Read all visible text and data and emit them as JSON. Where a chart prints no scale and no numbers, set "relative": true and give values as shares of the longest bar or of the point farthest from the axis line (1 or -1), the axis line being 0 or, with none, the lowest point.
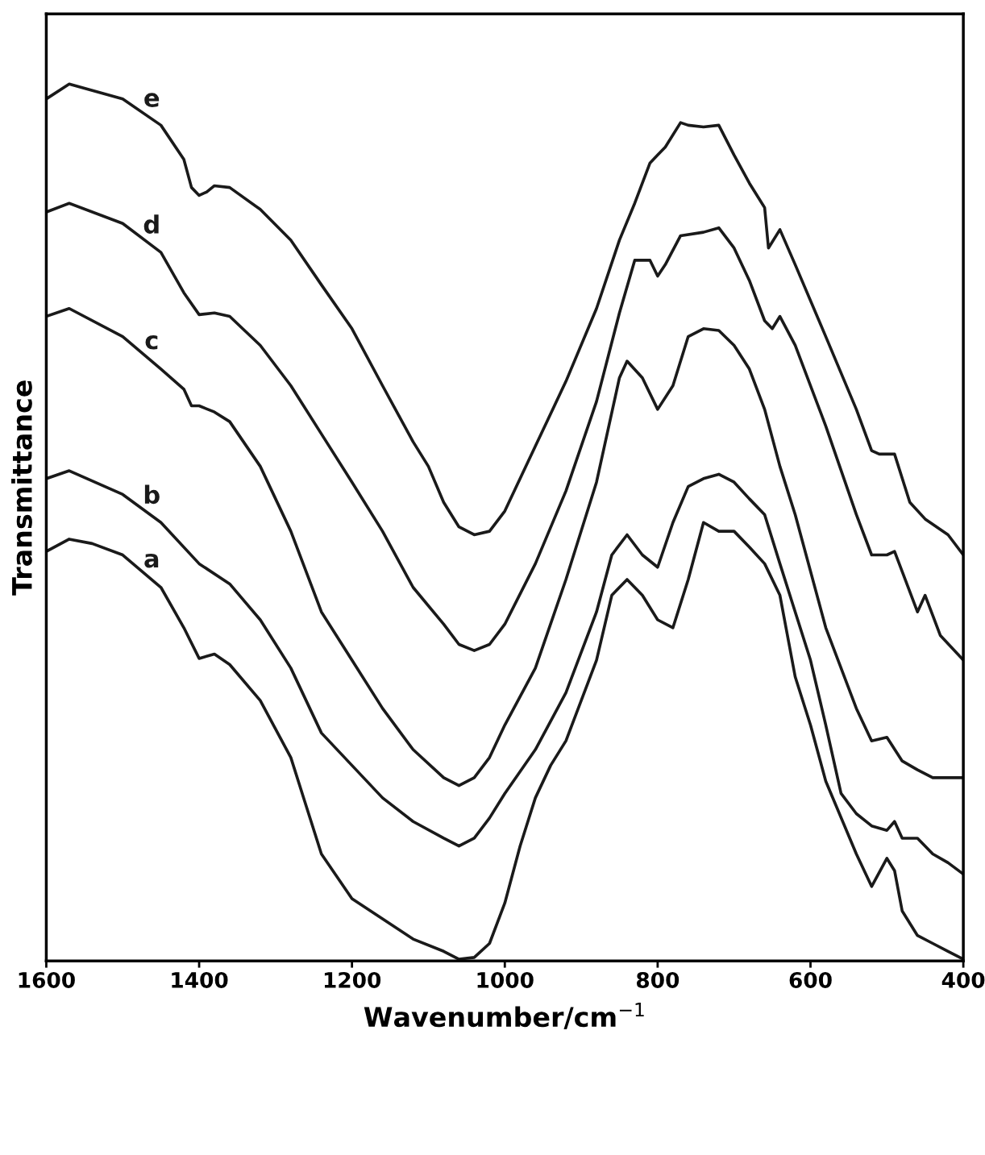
{
  "chart_data": {
    "type": "line",
    "relative": true,
    "xlabel": "Wavenumber/cm$^{−1}$",
    "ylabel": "Transmittance",
    "xlim": [
      1600,
      400
    ],
    "xticks": [
      1600,
      1400,
      1200,
      1000,
      800,
      600,
      400
    ],
    "grid": false,
    "legend": false,
    "marker": "none",
    "line_style": "solid",
    "tick_labels": "x",
    "series": [
      {
        "name": "e",
        "color": "#1a1a1a",
        "x": [
          1600,
          1570,
          1500,
          1450,
          1420,
          1410,
          1400,
          1390,
          1380,
          1360,
          1320,
          1280,
          1240,
          1200,
          1160,
          1120,
          1100,
          1080,
          1060,
          1040,
          1020,
          1000,
          960,
          920,
          880,
          850,
          830,
          810,
          800,
          790,
          770,
          760,
          740,
          720,
          700,
          680,
          660,
          655,
          640,
          620,
          580,
          540,
          520,
          510,
          490,
          470,
          450,
          420,
          400
        ],
        "values": [
          0.983,
          1.0,
          0.983,
          0.953,
          0.914,
          0.882,
          0.873,
          0.877,
          0.884,
          0.882,
          0.857,
          0.822,
          0.771,
          0.721,
          0.656,
          0.592,
          0.564,
          0.523,
          0.495,
          0.486,
          0.49,
          0.513,
          0.587,
          0.661,
          0.744,
          0.822,
          0.864,
          0.91,
          0.919,
          0.928,
          0.956,
          0.953,
          0.951,
          0.953,
          0.919,
          0.887,
          0.859,
          0.813,
          0.834,
          0.794,
          0.712,
          0.629,
          0.582,
          0.578,
          0.578,
          0.523,
          0.504,
          0.486,
          0.463
        ]
      },
      {
        "name": "d",
        "color": "#1a1a1a",
        "x": [
          1600,
          1570,
          1500,
          1450,
          1420,
          1400,
          1380,
          1360,
          1320,
          1280,
          1240,
          1200,
          1160,
          1120,
          1080,
          1060,
          1040,
          1020,
          1000,
          960,
          920,
          880,
          850,
          830,
          810,
          800,
          790,
          770,
          740,
          720,
          700,
          680,
          660,
          650,
          640,
          620,
          580,
          540,
          520,
          500,
          490,
          480,
          460,
          450,
          430,
          400
        ],
        "values": [
          0.854,
          0.864,
          0.841,
          0.808,
          0.762,
          0.737,
          0.739,
          0.735,
          0.702,
          0.656,
          0.601,
          0.546,
          0.49,
          0.426,
          0.384,
          0.361,
          0.354,
          0.361,
          0.384,
          0.453,
          0.536,
          0.638,
          0.739,
          0.799,
          0.799,
          0.781,
          0.794,
          0.827,
          0.831,
          0.836,
          0.813,
          0.776,
          0.73,
          0.721,
          0.735,
          0.702,
          0.61,
          0.509,
          0.463,
          0.463,
          0.467,
          0.444,
          0.398,
          0.417,
          0.371,
          0.343
        ]
      },
      {
        "name": "c",
        "color": "#1a1a1a",
        "x": [
          1600,
          1570,
          1500,
          1450,
          1420,
          1410,
          1400,
          1380,
          1360,
          1320,
          1280,
          1240,
          1200,
          1160,
          1120,
          1080,
          1060,
          1040,
          1020,
          1000,
          960,
          920,
          880,
          850,
          840,
          820,
          800,
          780,
          760,
          740,
          720,
          700,
          680,
          660,
          640,
          620,
          580,
          540,
          520,
          500,
          480,
          460,
          440,
          400
        ],
        "values": [
          0.735,
          0.744,
          0.712,
          0.675,
          0.652,
          0.633,
          0.633,
          0.626,
          0.615,
          0.564,
          0.49,
          0.398,
          0.343,
          0.288,
          0.241,
          0.209,
          0.2,
          0.209,
          0.232,
          0.269,
          0.334,
          0.435,
          0.546,
          0.665,
          0.684,
          0.665,
          0.629,
          0.656,
          0.712,
          0.721,
          0.719,
          0.702,
          0.675,
          0.629,
          0.564,
          0.509,
          0.38,
          0.288,
          0.251,
          0.255,
          0.228,
          0.218,
          0.209,
          0.209
        ]
      },
      {
        "name": "b",
        "color": "#1a1a1a",
        "x": [
          1600,
          1570,
          1500,
          1450,
          1400,
          1360,
          1320,
          1280,
          1240,
          1200,
          1160,
          1120,
          1080,
          1060,
          1040,
          1020,
          1000,
          960,
          920,
          880,
          860,
          840,
          820,
          800,
          780,
          760,
          740,
          720,
          700,
          680,
          660,
          640,
          620,
          600,
          580,
          560,
          540,
          520,
          500,
          490,
          480,
          460,
          440,
          420,
          400
        ],
        "values": [
          0.55,
          0.559,
          0.532,
          0.5,
          0.453,
          0.43,
          0.389,
          0.334,
          0.26,
          0.223,
          0.186,
          0.159,
          0.14,
          0.131,
          0.14,
          0.163,
          0.191,
          0.241,
          0.306,
          0.398,
          0.463,
          0.486,
          0.463,
          0.449,
          0.5,
          0.541,
          0.55,
          0.555,
          0.546,
          0.527,
          0.509,
          0.453,
          0.398,
          0.343,
          0.269,
          0.191,
          0.168,
          0.154,
          0.149,
          0.159,
          0.14,
          0.14,
          0.122,
          0.112,
          0.099
        ]
      },
      {
        "name": "a",
        "color": "#1a1a1a",
        "x": [
          1600,
          1570,
          1540,
          1500,
          1450,
          1420,
          1400,
          1380,
          1360,
          1320,
          1280,
          1260,
          1240,
          1200,
          1160,
          1120,
          1080,
          1060,
          1040,
          1020,
          1000,
          980,
          960,
          940,
          920,
          880,
          860,
          840,
          820,
          800,
          780,
          760,
          740,
          720,
          700,
          680,
          660,
          640,
          620,
          600,
          580,
          540,
          520,
          500,
          490,
          480,
          460,
          440,
          420,
          400
        ],
        "values": [
          0.467,
          0.481,
          0.476,
          0.463,
          0.426,
          0.38,
          0.345,
          0.35,
          0.338,
          0.297,
          0.232,
          0.177,
          0.122,
          0.071,
          0.048,
          0.025,
          0.011,
          0.002,
          0.004,
          0.02,
          0.066,
          0.131,
          0.186,
          0.223,
          0.251,
          0.343,
          0.417,
          0.435,
          0.417,
          0.389,
          0.38,
          0.435,
          0.5,
          0.49,
          0.49,
          0.472,
          0.453,
          0.417,
          0.324,
          0.269,
          0.205,
          0.122,
          0.085,
          0.117,
          0.103,
          0.057,
          0.029,
          0.02,
          0.011,
          0.002
        ]
      }
    ]
  }
}
